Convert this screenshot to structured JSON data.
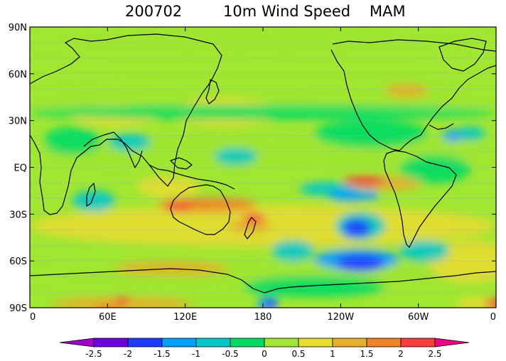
{
  "title": {
    "date": "200702",
    "variable": "10m Wind Speed",
    "season": "MAM"
  },
  "axes": {
    "lat_labels": [
      "90N",
      "60N",
      "30N",
      "EQ",
      "30S",
      "60S",
      "90S"
    ],
    "lat_values": [
      90,
      60,
      30,
      0,
      -30,
      -60,
      -90
    ],
    "lon_labels": [
      "0",
      "60E",
      "120E",
      "180",
      "120W",
      "60W",
      "0"
    ],
    "lon_values": [
      0,
      60,
      120,
      180,
      240,
      300,
      360
    ]
  },
  "colorbar": {
    "labels": [
      "-2.5",
      "-2",
      "-1.5",
      "-1",
      "-0.5",
      "0",
      "0.5",
      "1",
      "1.5",
      "2",
      "2.5"
    ],
    "colors": [
      "#a000c8",
      "#6e00dc",
      "#1e3cff",
      "#00a0ff",
      "#00c8c8",
      "#00dc64",
      "#a0e632",
      "#e6dc32",
      "#e6af2d",
      "#f08228",
      "#fa3c3c",
      "#f00082"
    ]
  },
  "map_colors": {
    "coast": "#000000",
    "lat_lines": "#7fa0ff"
  }
}
